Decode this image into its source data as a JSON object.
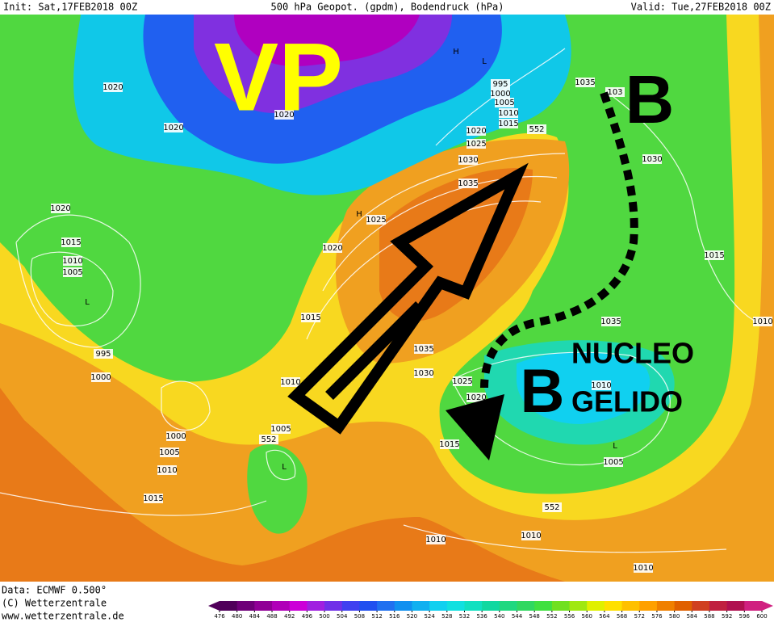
{
  "header": {
    "init": "Init: Sat,17FEB2018 00Z",
    "title": "500 hPa Geopot. (gpdm), Bodendruck (hPa)",
    "valid": "Valid: Tue,27FEB2018 00Z"
  },
  "annotations": {
    "vp": "VP",
    "b_north": "B",
    "b_core": "B",
    "core_line1": "NUCLEO",
    "core_line2": "GELIDO"
  },
  "isobar_labels": [
    "1020",
    "1020",
    "1020",
    "1020",
    "1015",
    "1010",
    "1005",
    "L",
    "995",
    "1000",
    "1000",
    "1005",
    "1010",
    "1015",
    "1010",
    "1015",
    "1020",
    "1025",
    "H",
    "1035",
    "1030",
    "1025",
    "1020",
    "552",
    "1015",
    "1010",
    "1005",
    "1000",
    "995",
    "H",
    "L",
    "1035",
    "103",
    "1030",
    "1015",
    "1035",
    "1035",
    "1030",
    "1025",
    "1020",
    "1015",
    "1010",
    "1005",
    "L",
    "552",
    "1010",
    "1010",
    "1010",
    "1010",
    "552",
    "1005",
    "L"
  ],
  "footer": {
    "data": "Data: ECMWF  0.500°",
    "copyright": "(C) Wetterzentrale",
    "url": "www.wetterzentrale.de"
  },
  "colorbar": {
    "ticks": [
      476,
      480,
      484,
      488,
      492,
      496,
      500,
      504,
      508,
      512,
      516,
      520,
      524,
      528,
      532,
      536,
      540,
      544,
      548,
      552,
      556,
      560,
      564,
      568,
      572,
      576,
      580,
      584,
      588,
      592,
      596,
      600
    ],
    "colors": [
      "#50005a",
      "#6e0078",
      "#900096",
      "#b000b8",
      "#cc00d8",
      "#a020e0",
      "#7030e8",
      "#4040f0",
      "#2050f0",
      "#2070f0",
      "#1090f0",
      "#10b0f0",
      "#10d0f0",
      "#10e0e0",
      "#10e0c0",
      "#10d8a0",
      "#20d880",
      "#30d860",
      "#40e040",
      "#70e020",
      "#a0e810",
      "#e0f000",
      "#ffe000",
      "#ffc000",
      "#ffa000",
      "#f08000",
      "#e06000",
      "#d04020",
      "#c02040",
      "#b01050",
      "#d02080"
    ]
  }
}
